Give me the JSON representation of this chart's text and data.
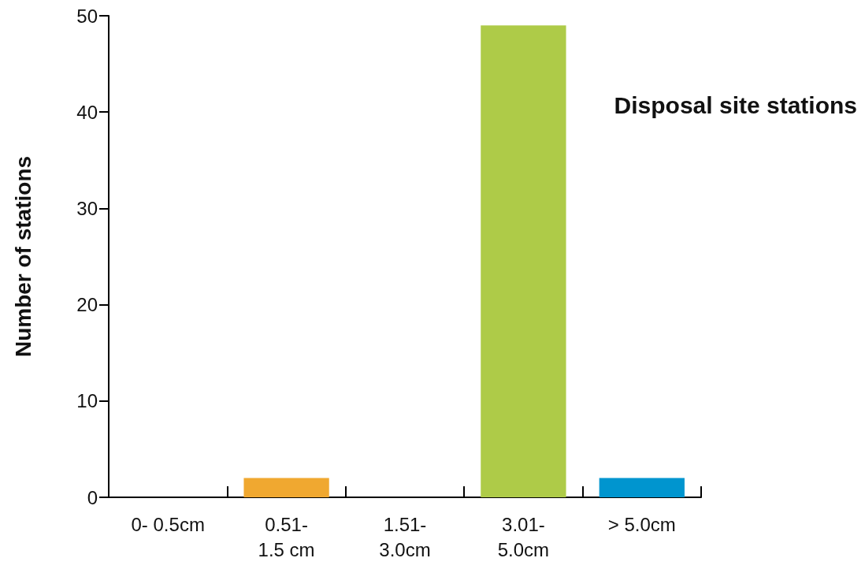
{
  "chart_data": {
    "type": "bar",
    "ylabel": "Number of stations",
    "annotations": [
      "Disposal site stations"
    ],
    "categories": [
      "0- 0.5cm",
      "0.51-\n1.5 cm",
      "1.51-\n3.0cm",
      "3.01-\n5.0cm",
      "> 5.0cm"
    ],
    "values": [
      0,
      2,
      0,
      49,
      2
    ],
    "colors": [
      "#f0a830",
      "#f0a830",
      "#f0a830",
      "#aecb48",
      "#0095cf"
    ],
    "ylim": [
      0,
      50
    ],
    "yticks": [
      0,
      10,
      20,
      30,
      40,
      50
    ],
    "grid": false
  }
}
